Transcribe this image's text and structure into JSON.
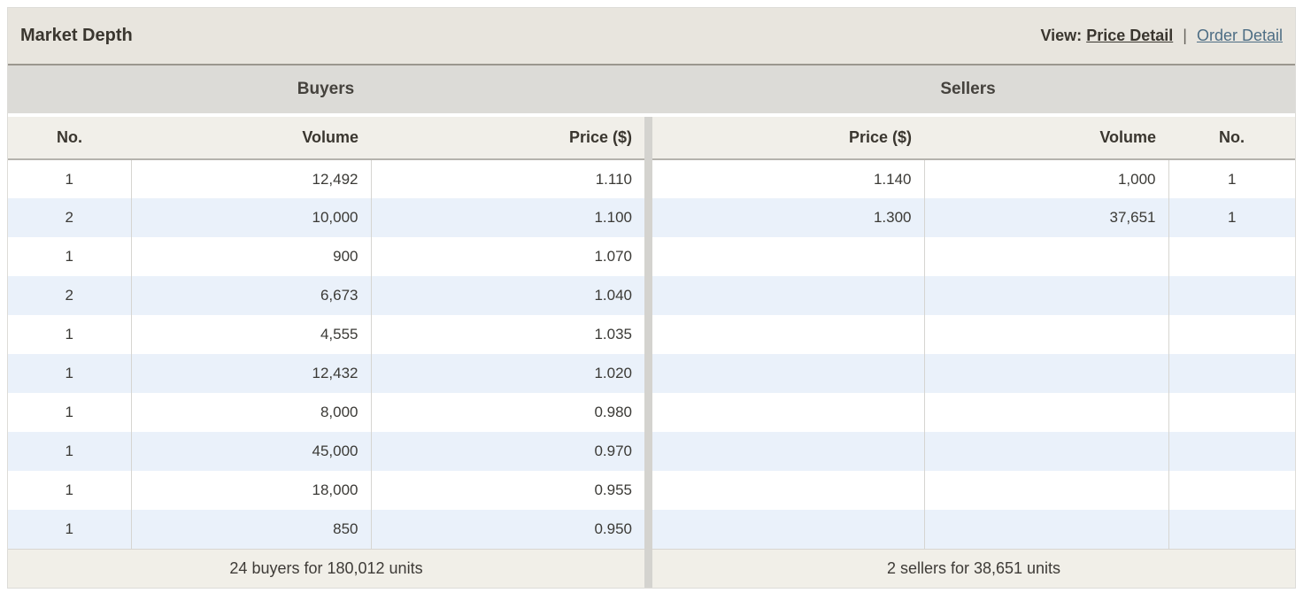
{
  "header": {
    "title": "Market Depth",
    "view_label": "View:",
    "separator": "|",
    "links": [
      {
        "label": "Price Detail",
        "active": true
      },
      {
        "label": "Order Detail",
        "active": false
      }
    ]
  },
  "buyers": {
    "section_title": "Buyers",
    "columns": {
      "no": "No.",
      "volume": "Volume",
      "price": "Price ($)"
    },
    "rows": [
      {
        "no": "1",
        "volume": "12,492",
        "price": "1.110"
      },
      {
        "no": "2",
        "volume": "10,000",
        "price": "1.100"
      },
      {
        "no": "1",
        "volume": "900",
        "price": "1.070"
      },
      {
        "no": "2",
        "volume": "6,673",
        "price": "1.040"
      },
      {
        "no": "1",
        "volume": "4,555",
        "price": "1.035"
      },
      {
        "no": "1",
        "volume": "12,432",
        "price": "1.020"
      },
      {
        "no": "1",
        "volume": "8,000",
        "price": "0.980"
      },
      {
        "no": "1",
        "volume": "45,000",
        "price": "0.970"
      },
      {
        "no": "1",
        "volume": "18,000",
        "price": "0.955"
      },
      {
        "no": "1",
        "volume": "850",
        "price": "0.950"
      }
    ],
    "summary": "24 buyers for 180,012 units"
  },
  "sellers": {
    "section_title": "Sellers",
    "columns": {
      "price": "Price ($)",
      "volume": "Volume",
      "no": "No."
    },
    "rows": [
      {
        "price": "1.140",
        "volume": "1,000",
        "no": "1"
      },
      {
        "price": "1.300",
        "volume": "37,651",
        "no": "1"
      },
      {
        "price": "",
        "volume": "",
        "no": ""
      },
      {
        "price": "",
        "volume": "",
        "no": ""
      },
      {
        "price": "",
        "volume": "",
        "no": ""
      },
      {
        "price": "",
        "volume": "",
        "no": ""
      },
      {
        "price": "",
        "volume": "",
        "no": ""
      },
      {
        "price": "",
        "volume": "",
        "no": ""
      },
      {
        "price": "",
        "volume": "",
        "no": ""
      },
      {
        "price": "",
        "volume": "",
        "no": ""
      }
    ],
    "summary": "2 sellers for 38,651 units"
  },
  "colors": {
    "title_bar_bg": "#e8e5de",
    "section_bar_bg": "#dcdbd7",
    "header_row_bg": "#f1efe9",
    "row_alt_bg": "#eaf1fa",
    "footer_bg": "#f1efe8",
    "title_bar_border": "#9b978e",
    "header_row_border": "#b5b3ad",
    "link_inactive": "#4d6d84",
    "text": "#3b3a36"
  }
}
